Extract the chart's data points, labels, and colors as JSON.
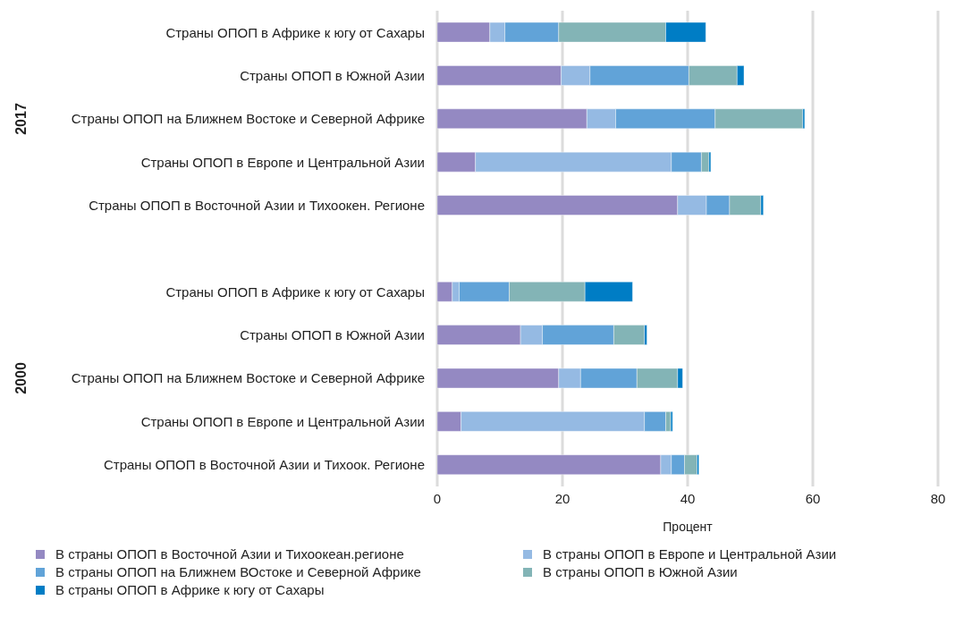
{
  "chart_data": {
    "type": "bar",
    "orientation": "horizontal",
    "stacked": true,
    "xlabel": "Процент",
    "categories": [
      "Страны ОПОП в Африке к югу от Сахары",
      "Страны ОПОП в Южной Азии",
      "Страны ОПОП на Ближнем Востоке и Северной Африке",
      "Страны ОПОП в Европе и Центральной Азии",
      "Страны ОПОП в Восточной Азии и Тихоокен. Регионе",
      null,
      "Страны ОПОП в Африке к югу от Сахары",
      "Страны ОПОП в Южной Азии",
      "Страны ОПОП на Ближнем Востоке и Северной Африке",
      "Страны ОПОП в Европе и Центральной Азии",
      "Страны ОПОП в Восточной Азии и Тихоок. Регионе"
    ],
    "series": [
      {
        "name": "В страны ОПОП в Восточной Азии и Тихоокеан.регионе",
        "color": "#9489c2",
        "values": [
          8.4,
          19.8,
          23.9,
          6.1,
          38.4,
          null,
          2.4,
          13.3,
          19.4,
          3.8,
          35.7
        ]
      },
      {
        "name": "В страны ОПОП в Европе и Центральной Азии",
        "color": "#95bae3",
        "values": [
          2.4,
          4.6,
          4.6,
          31.3,
          4.6,
          null,
          1.1,
          3.5,
          3.5,
          29.3,
          1.7
        ]
      },
      {
        "name": "В страны ОПОП на Ближнем ВОстоке и Северной Африке",
        "color": "#61a3d8",
        "values": [
          8.6,
          15.8,
          15.9,
          4.8,
          3.7,
          null,
          8.0,
          11.4,
          9.0,
          3.4,
          2.1
        ]
      },
      {
        "name": "В страны ОПОП в Южной Азии",
        "color": "#83b4b6",
        "values": [
          17.1,
          7.7,
          14.0,
          1.2,
          5.0,
          null,
          12.1,
          4.9,
          6.5,
          0.8,
          2.0
        ]
      },
      {
        "name": "В страны ОПОП в Африке к югу от Сахары",
        "color": "#007dc5",
        "values": [
          6.4,
          1.1,
          0.3,
          0.3,
          0.4,
          null,
          7.6,
          0.4,
          0.8,
          0.3,
          0.3
        ]
      }
    ],
    "annotations": [
      "2017",
      "2000"
    ],
    "xlim": [
      0,
      80
    ],
    "xticks": [
      0,
      20,
      40,
      60,
      80
    ],
    "grid": "x",
    "legend": "bottom"
  }
}
